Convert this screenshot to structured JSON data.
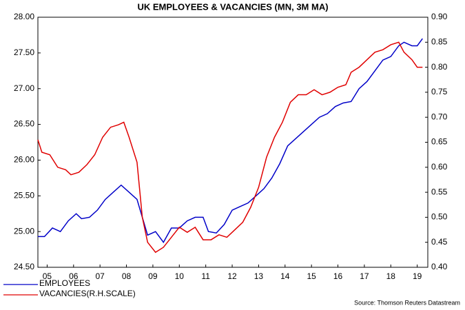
{
  "chart_data": {
    "type": "line",
    "title": "UK EMPLOYEES & VACANCIES (MN, 3M MA)",
    "source": "Source: Thomson Reuters Datastream",
    "xlim": [
      2005.15,
      2019.9
    ],
    "xticks": [
      {
        "value": 2005.5,
        "label": "05"
      },
      {
        "value": 2006.5,
        "label": "06"
      },
      {
        "value": 2007.5,
        "label": "07"
      },
      {
        "value": 2008.5,
        "label": "08"
      },
      {
        "value": 2009.5,
        "label": "09"
      },
      {
        "value": 2010.5,
        "label": "10"
      },
      {
        "value": 2011.5,
        "label": "11"
      },
      {
        "value": 2012.5,
        "label": "12"
      },
      {
        "value": 2013.5,
        "label": "13"
      },
      {
        "value": 2014.5,
        "label": "14"
      },
      {
        "value": 2015.5,
        "label": "15"
      },
      {
        "value": 2016.5,
        "label": "16"
      },
      {
        "value": 2017.5,
        "label": "17"
      },
      {
        "value": 2018.5,
        "label": "18"
      },
      {
        "value": 2019.5,
        "label": "19"
      }
    ],
    "ylim": [
      24.5,
      28
    ],
    "yticks": [
      {
        "value": 24.5,
        "label": "24.50"
      },
      {
        "value": 25,
        "label": "25.00"
      },
      {
        "value": 25.5,
        "label": "25.50"
      },
      {
        "value": 26,
        "label": "26.00"
      },
      {
        "value": 26.5,
        "label": "26.50"
      },
      {
        "value": 27,
        "label": "27.00"
      },
      {
        "value": 27.5,
        "label": "27.50"
      },
      {
        "value": 28,
        "label": "28.00"
      }
    ],
    "y2lim": [
      0.4,
      0.9
    ],
    "y2ticks": [
      {
        "value": 0.4,
        "label": "0.40"
      },
      {
        "value": 0.45,
        "label": "0.45"
      },
      {
        "value": 0.5,
        "label": "0.50"
      },
      {
        "value": 0.55,
        "label": "0.55"
      },
      {
        "value": 0.6,
        "label": "0.60"
      },
      {
        "value": 0.65,
        "label": "0.65"
      },
      {
        "value": 0.7,
        "label": "0.70"
      },
      {
        "value": 0.75,
        "label": "0.75"
      },
      {
        "value": 0.8,
        "label": "0.80"
      },
      {
        "value": 0.85,
        "label": "0.85"
      },
      {
        "value": 0.9,
        "label": "0.90"
      }
    ],
    "series": [
      {
        "name": "EMPLOYEES",
        "color": "#0000c8",
        "axis": "y",
        "x": [
          2005.15,
          2005.4,
          2005.7,
          2006.0,
          2006.3,
          2006.6,
          2006.8,
          2007.1,
          2007.4,
          2007.7,
          2008.0,
          2008.3,
          2008.6,
          2008.9,
          2009.1,
          2009.3,
          2009.6,
          2009.9,
          2010.2,
          2010.5,
          2010.8,
          2011.1,
          2011.4,
          2011.6,
          2011.9,
          2012.2,
          2012.5,
          2012.8,
          2013.1,
          2013.4,
          2013.7,
          2014.0,
          2014.3,
          2014.6,
          2014.9,
          2015.2,
          2015.5,
          2015.8,
          2016.1,
          2016.4,
          2016.7,
          2017.0,
          2017.3,
          2017.6,
          2017.9,
          2018.2,
          2018.5,
          2018.8,
          2019.0,
          2019.3,
          2019.5,
          2019.7
        ],
        "values": [
          24.93,
          24.93,
          25.05,
          25.0,
          25.15,
          25.25,
          25.18,
          25.2,
          25.3,
          25.45,
          25.55,
          25.65,
          25.55,
          25.45,
          25.2,
          24.95,
          25.0,
          24.85,
          25.05,
          25.05,
          25.15,
          25.2,
          25.2,
          25.0,
          24.98,
          25.1,
          25.3,
          25.35,
          25.4,
          25.5,
          25.6,
          25.75,
          25.95,
          26.2,
          26.3,
          26.4,
          26.5,
          26.6,
          26.65,
          26.75,
          26.8,
          26.82,
          27.0,
          27.1,
          27.25,
          27.4,
          27.45,
          27.6,
          27.65,
          27.6,
          27.6,
          27.7
        ]
      },
      {
        "name": "VACANCIES(R.H.SCALE)",
        "color": "#e00000",
        "axis": "y2",
        "x": [
          2005.15,
          2005.3,
          2005.6,
          2005.9,
          2006.2,
          2006.4,
          2006.7,
          2007.0,
          2007.3,
          2007.6,
          2007.9,
          2008.2,
          2008.4,
          2008.6,
          2008.9,
          2009.1,
          2009.3,
          2009.6,
          2009.9,
          2010.2,
          2010.5,
          2010.8,
          2011.1,
          2011.4,
          2011.7,
          2012.0,
          2012.3,
          2012.6,
          2012.9,
          2013.2,
          2013.5,
          2013.8,
          2014.1,
          2014.4,
          2014.7,
          2015.0,
          2015.3,
          2015.6,
          2015.9,
          2016.2,
          2016.5,
          2016.8,
          2017.0,
          2017.3,
          2017.6,
          2017.9,
          2018.2,
          2018.5,
          2018.8,
          2019.0,
          2019.3,
          2019.5,
          2019.7
        ],
        "values": [
          0.655,
          0.63,
          0.625,
          0.6,
          0.595,
          0.585,
          0.59,
          0.605,
          0.625,
          0.66,
          0.68,
          0.685,
          0.69,
          0.66,
          0.61,
          0.5,
          0.45,
          0.43,
          0.44,
          0.46,
          0.48,
          0.47,
          0.48,
          0.455,
          0.455,
          0.465,
          0.46,
          0.475,
          0.49,
          0.52,
          0.56,
          0.62,
          0.66,
          0.69,
          0.73,
          0.745,
          0.745,
          0.755,
          0.745,
          0.75,
          0.76,
          0.765,
          0.79,
          0.8,
          0.815,
          0.83,
          0.835,
          0.845,
          0.85,
          0.83,
          0.815,
          0.8,
          0.8
        ]
      }
    ]
  }
}
